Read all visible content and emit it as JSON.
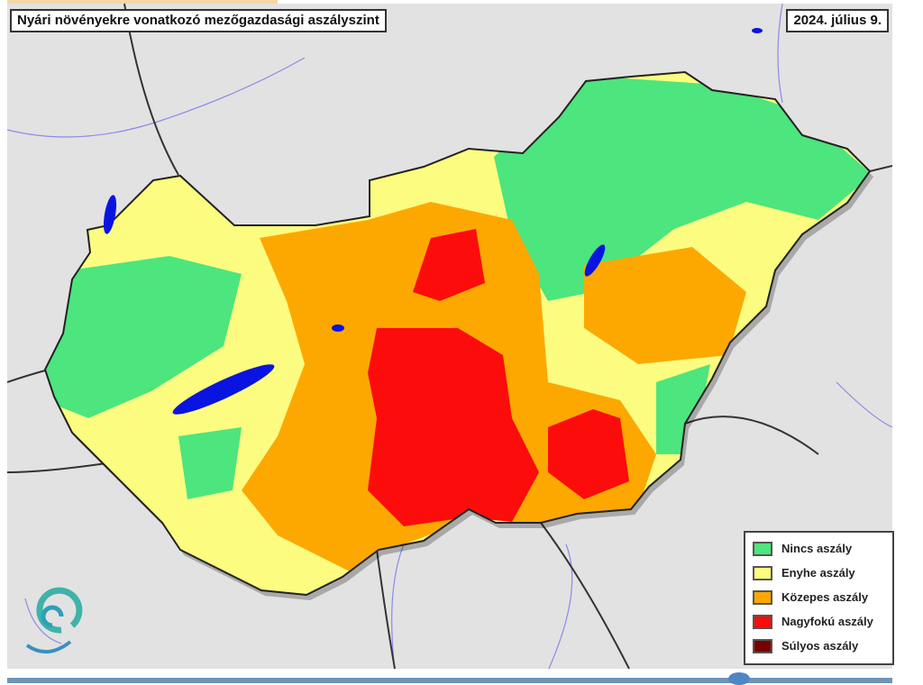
{
  "map": {
    "title": "Nyári növényekre vonatkozó mezőgazdasági aszályszint",
    "date": "2024. július 9.",
    "legend": [
      {
        "label": "Nincs aszály",
        "color": "#4de57e"
      },
      {
        "label": "Enyhe aszály",
        "color": "#fcfc80"
      },
      {
        "label": "Közepes aszály",
        "color": "#fda800"
      },
      {
        "label": "Nagyfokú aszály",
        "color": "#fd0c0c"
      },
      {
        "label": "Súlyos aszály",
        "color": "#7a0000"
      }
    ],
    "water_color": "#0a14e0",
    "logo_icon": "spiral-logo-icon"
  }
}
